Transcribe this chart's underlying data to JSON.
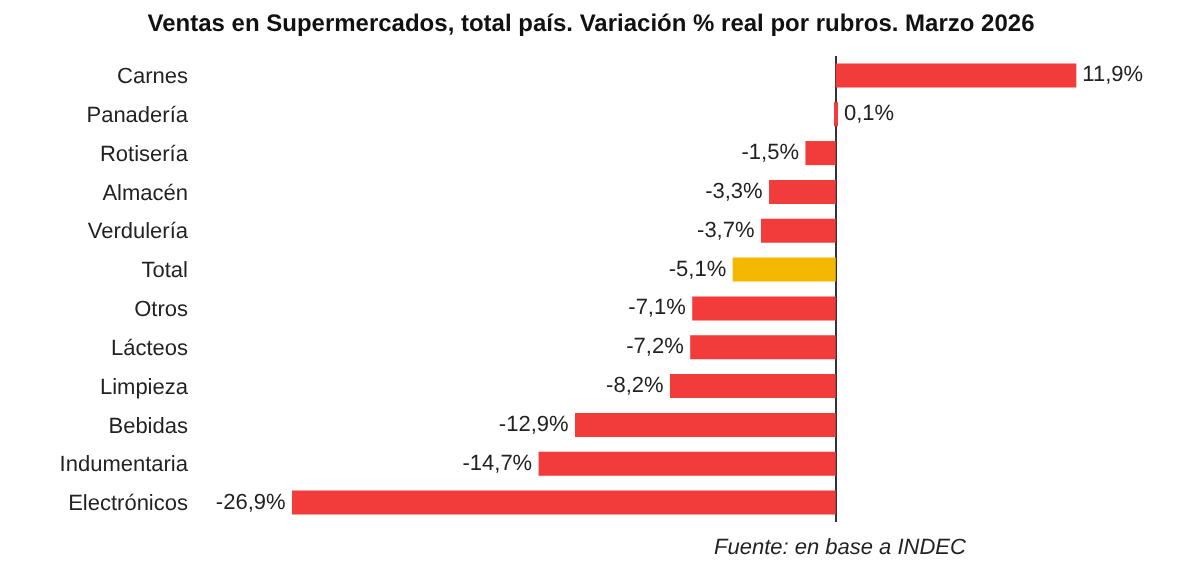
{
  "chart_data": {
    "type": "bar",
    "orientation": "horizontal",
    "title": "Ventas en Supermercados, total país. Variación % real por rubros. Marzo 2026",
    "categories": [
      "Carnes",
      "Panadería",
      "Rotisería",
      "Almacén",
      "Verdulería",
      "Total",
      "Otros",
      "Lácteos",
      "Limpieza",
      "Bebidas",
      "Indumentaria",
      "Electrónicos"
    ],
    "values": [
      11.9,
      0.1,
      -1.5,
      -3.3,
      -3.7,
      -5.1,
      -7.1,
      -7.2,
      -8.2,
      -12.9,
      -14.7,
      -26.9
    ],
    "value_labels": [
      "11,9%",
      "0,1%",
      "-1,5%",
      "-3,3%",
      "-3,7%",
      "-5,1%",
      "-7,1%",
      "-7,2%",
      "-8,2%",
      "-12,9%",
      "-14,7%",
      "-26,9%"
    ],
    "colors": [
      "#f23b3b",
      "#f23b3b",
      "#f23b3b",
      "#f23b3b",
      "#f23b3b",
      "#f5b800",
      "#f23b3b",
      "#f23b3b",
      "#f23b3b",
      "#f23b3b",
      "#f23b3b",
      "#f23b3b"
    ],
    "annotations": [
      "Fuente: en base a INDEC"
    ],
    "legend": false
  }
}
